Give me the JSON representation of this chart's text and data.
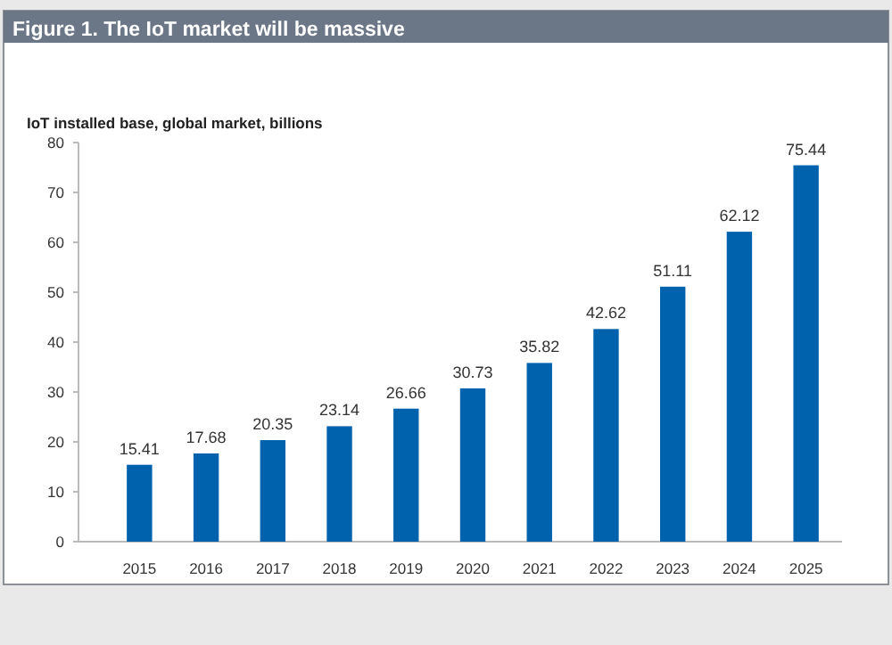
{
  "chart_data": {
    "type": "bar",
    "title": "Figure 1. The IoT market will be massive",
    "subtitle": "IoT installed base, global market, billions",
    "categories": [
      "2015",
      "2016",
      "2017",
      "2018",
      "2019",
      "2020",
      "2021",
      "2022",
      "2023",
      "2024",
      "2025"
    ],
    "values": [
      15.41,
      17.68,
      20.35,
      23.14,
      26.66,
      30.73,
      35.82,
      42.62,
      51.11,
      62.12,
      75.44
    ],
    "color": "#0062ad",
    "ylim": [
      0,
      80
    ],
    "yticks": [
      0,
      10,
      20,
      30,
      40,
      50,
      60,
      70,
      80
    ],
    "grid": false,
    "data_labels": true
  }
}
